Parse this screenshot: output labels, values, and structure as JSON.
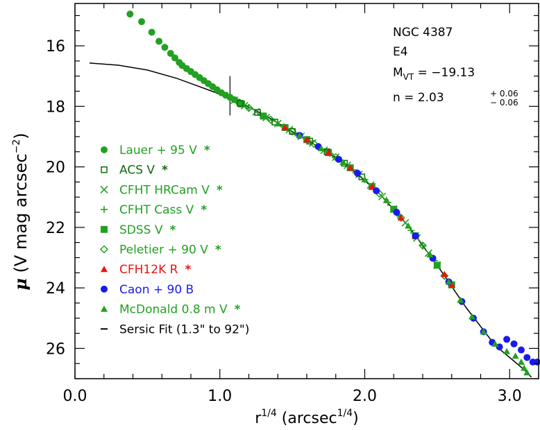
{
  "chart_data": {
    "type": "scatter",
    "xlabel_base": "r",
    "xlabel_sup": "1/4",
    "xlabel_rest": " (arcsec",
    "xlabel_sup2": "1/4",
    "xlabel_close": ")",
    "ylabel_mu": "μ",
    "ylabel_text": " (V mag arcsec",
    "ylabel_sup": "−2",
    "ylabel_close": ")",
    "xlim": [
      0.0,
      3.2
    ],
    "ylim": [
      27.0,
      14.6
    ],
    "x_ticks": [
      0.0,
      1.0,
      2.0,
      3.0
    ],
    "x_tick_labels": [
      "0.0",
      "1.0",
      "2.0",
      "3.0"
    ],
    "y_ticks": [
      16,
      18,
      20,
      22,
      24,
      26
    ],
    "y_tick_labels": [
      "16",
      "18",
      "20",
      "22",
      "24",
      "26"
    ],
    "annotation": {
      "galaxy": "NGC 4387",
      "type": "E4",
      "mvt_label": "M",
      "mvt_sub": "VT",
      "mvt_value": " = −19.13",
      "n_label": "n   = 2.03",
      "n_plus": "+ 0.06",
      "n_minus": "− 0.06"
    },
    "legend": [
      {
        "label": "Lauer + 95 V",
        "star": "*",
        "color": "#22a022",
        "marker": "filled-circle"
      },
      {
        "label": "ACS V",
        "star": "*",
        "color": "#0b6b0b",
        "marker": "open-square"
      },
      {
        "label": "CFHT HRCam V",
        "star": "*",
        "color": "#22a022",
        "marker": "cross"
      },
      {
        "label": "CFHT Cass V",
        "star": "*",
        "color": "#22a022",
        "marker": "plus"
      },
      {
        "label": "SDSS V",
        "star": "*",
        "color": "#22a022",
        "marker": "filled-square"
      },
      {
        "label": "Peletier + 90 V",
        "star": "*",
        "color": "#22a022",
        "marker": "open-diamond"
      },
      {
        "label": "CFH12K R",
        "star": "*",
        "color": "#ee1111",
        "marker": "filled-triangle"
      },
      {
        "label": "Caon + 90 B",
        "star": "",
        "color": "#1a1aee",
        "marker": "filled-circle"
      },
      {
        "label": "McDonald 0.8 m V",
        "star": "*",
        "color": "#22a022",
        "marker": "filled-triangle"
      },
      {
        "label": "Sersic Fit (1.3\" to 92\")",
        "star": "",
        "color": "#000000",
        "marker": "dash"
      }
    ],
    "fit_marker_x": 1.07,
    "series": [
      {
        "name": "Lauer + 95 V",
        "marker": "filled-circle",
        "color": "#22a022",
        "points": [
          [
            0.38,
            14.95
          ],
          [
            0.46,
            15.2
          ],
          [
            0.53,
            15.55
          ],
          [
            0.58,
            15.85
          ],
          [
            0.62,
            16.05
          ],
          [
            0.66,
            16.25
          ],
          [
            0.69,
            16.4
          ],
          [
            0.72,
            16.55
          ],
          [
            0.74,
            16.65
          ],
          [
            0.77,
            16.75
          ],
          [
            0.8,
            16.85
          ],
          [
            0.83,
            16.95
          ],
          [
            0.86,
            17.05
          ],
          [
            0.89,
            17.15
          ],
          [
            0.92,
            17.25
          ],
          [
            0.95,
            17.35
          ],
          [
            0.98,
            17.45
          ],
          [
            1.01,
            17.55
          ],
          [
            1.04,
            17.63
          ],
          [
            1.07,
            17.7
          ],
          [
            1.1,
            17.78
          ],
          [
            1.13,
            17.86
          ]
        ]
      },
      {
        "name": "CFHT HRCam V",
        "marker": "cross",
        "color": "#22a022",
        "points": [
          [
            1.1,
            17.8
          ],
          [
            1.17,
            17.98
          ],
          [
            1.25,
            18.18
          ],
          [
            1.32,
            18.37
          ],
          [
            1.4,
            18.57
          ],
          [
            1.48,
            18.77
          ],
          [
            1.56,
            18.99
          ],
          [
            1.64,
            19.21
          ],
          [
            1.72,
            19.45
          ],
          [
            1.8,
            19.68
          ],
          [
            1.88,
            19.95
          ],
          [
            1.96,
            20.25
          ],
          [
            2.04,
            20.6
          ],
          [
            2.12,
            20.98
          ],
          [
            2.2,
            21.4
          ],
          [
            2.28,
            21.85
          ],
          [
            2.36,
            22.35
          ],
          [
            2.44,
            22.85
          ],
          [
            2.5,
            23.25
          ]
        ]
      },
      {
        "name": "CFHT Cass V",
        "marker": "plus",
        "color": "#22a022",
        "points": [
          [
            1.12,
            17.84
          ],
          [
            1.2,
            18.05
          ],
          [
            1.28,
            18.25
          ],
          [
            1.36,
            18.46
          ],
          [
            1.44,
            18.67
          ],
          [
            1.52,
            18.88
          ],
          [
            1.6,
            19.1
          ],
          [
            1.68,
            19.33
          ],
          [
            1.76,
            19.56
          ],
          [
            1.84,
            19.82
          ],
          [
            1.92,
            20.1
          ],
          [
            2.0,
            20.42
          ],
          [
            2.08,
            20.79
          ],
          [
            2.16,
            21.18
          ],
          [
            2.24,
            21.62
          ],
          [
            2.32,
            22.1
          ],
          [
            2.4,
            22.6
          ],
          [
            2.48,
            23.1
          ]
        ]
      },
      {
        "name": "SDSS V",
        "marker": "filled-square",
        "color": "#22a022",
        "points": [
          [
            1.15,
            17.92
          ],
          [
            1.3,
            18.32
          ],
          [
            1.45,
            18.7
          ],
          [
            1.6,
            19.1
          ],
          [
            1.75,
            19.53
          ],
          [
            1.9,
            20.03
          ],
          [
            2.05,
            20.65
          ],
          [
            2.2,
            21.4
          ],
          [
            2.35,
            22.28
          ],
          [
            2.5,
            23.25
          ],
          [
            2.6,
            23.9
          ]
        ]
      },
      {
        "name": "Peletier + 90 V",
        "marker": "open-diamond",
        "color": "#22a022",
        "points": [
          [
            1.2,
            18.05
          ],
          [
            1.35,
            18.44
          ],
          [
            1.5,
            18.83
          ],
          [
            1.65,
            19.24
          ],
          [
            1.8,
            19.68
          ],
          [
            1.95,
            20.21
          ],
          [
            2.1,
            20.88
          ],
          [
            2.25,
            21.68
          ],
          [
            2.4,
            22.6
          ],
          [
            2.55,
            23.6
          ]
        ]
      },
      {
        "name": "ACS V",
        "marker": "open-square",
        "color": "#0b6b0b",
        "points": [
          [
            1.14,
            17.9
          ],
          [
            1.26,
            18.2
          ],
          [
            1.38,
            18.52
          ],
          [
            1.5,
            18.83
          ],
          [
            1.62,
            19.15
          ],
          [
            1.74,
            19.5
          ],
          [
            1.86,
            19.88
          ],
          [
            1.98,
            20.33
          ]
        ]
      },
      {
        "name": "CFH12K R",
        "marker": "filled-triangle",
        "color": "#ee1111",
        "points": [
          [
            1.45,
            18.7
          ],
          [
            1.6,
            19.1
          ],
          [
            1.75,
            19.53
          ],
          [
            1.9,
            20.03
          ],
          [
            2.05,
            20.65
          ],
          [
            2.15,
            21.1
          ],
          [
            2.25,
            21.68
          ],
          [
            2.35,
            22.28
          ],
          [
            2.45,
            22.9
          ],
          [
            2.55,
            23.55
          ],
          [
            2.6,
            23.9
          ]
        ]
      },
      {
        "name": "Caon + 90 B",
        "marker": "filled-circle",
        "color": "#1a1aee",
        "points": [
          [
            1.55,
            18.96
          ],
          [
            1.68,
            19.33
          ],
          [
            1.82,
            19.75
          ],
          [
            1.95,
            20.21
          ],
          [
            2.08,
            20.79
          ],
          [
            2.22,
            21.5
          ],
          [
            2.35,
            22.28
          ],
          [
            2.47,
            23.02
          ],
          [
            2.58,
            23.8
          ],
          [
            2.67,
            24.45
          ],
          [
            2.75,
            25.0
          ],
          [
            2.82,
            25.45
          ],
          [
            2.88,
            25.8
          ],
          [
            2.93,
            25.95
          ],
          [
            2.98,
            25.7
          ],
          [
            3.03,
            25.85
          ],
          [
            3.08,
            26.05
          ],
          [
            3.12,
            26.3
          ],
          [
            3.16,
            26.45
          ],
          [
            3.19,
            26.45
          ]
        ]
      },
      {
        "name": "McDonald 0.8 m V",
        "marker": "filled-triangle",
        "color": "#22a022",
        "points": [
          [
            1.4,
            18.57
          ],
          [
            1.55,
            18.96
          ],
          [
            1.7,
            19.39
          ],
          [
            1.85,
            19.85
          ],
          [
            2.0,
            20.42
          ],
          [
            2.15,
            21.1
          ],
          [
            2.3,
            21.95
          ],
          [
            2.45,
            22.9
          ],
          [
            2.58,
            23.8
          ],
          [
            2.66,
            24.4
          ],
          [
            2.74,
            24.95
          ],
          [
            2.82,
            25.45
          ],
          [
            2.9,
            25.85
          ],
          [
            2.98,
            26.1
          ],
          [
            3.04,
            26.25
          ],
          [
            3.08,
            26.45
          ],
          [
            3.1,
            26.65
          ],
          [
            3.12,
            26.8
          ]
        ]
      }
    ],
    "fit_curve": [
      [
        0.1,
        16.57
      ],
      [
        0.3,
        16.64
      ],
      [
        0.5,
        16.8
      ],
      [
        0.7,
        17.07
      ],
      [
        0.9,
        17.42
      ],
      [
        1.1,
        17.78
      ],
      [
        1.3,
        18.27
      ],
      [
        1.5,
        18.83
      ],
      [
        1.7,
        19.39
      ],
      [
        1.9,
        20.03
      ],
      [
        2.1,
        20.88
      ],
      [
        2.3,
        21.95
      ],
      [
        2.5,
        23.25
      ],
      [
        2.7,
        24.65
      ],
      [
        2.9,
        25.9
      ],
      [
        3.0,
        26.3
      ],
      [
        3.1,
        26.7
      ],
      [
        3.15,
        26.95
      ]
    ]
  }
}
